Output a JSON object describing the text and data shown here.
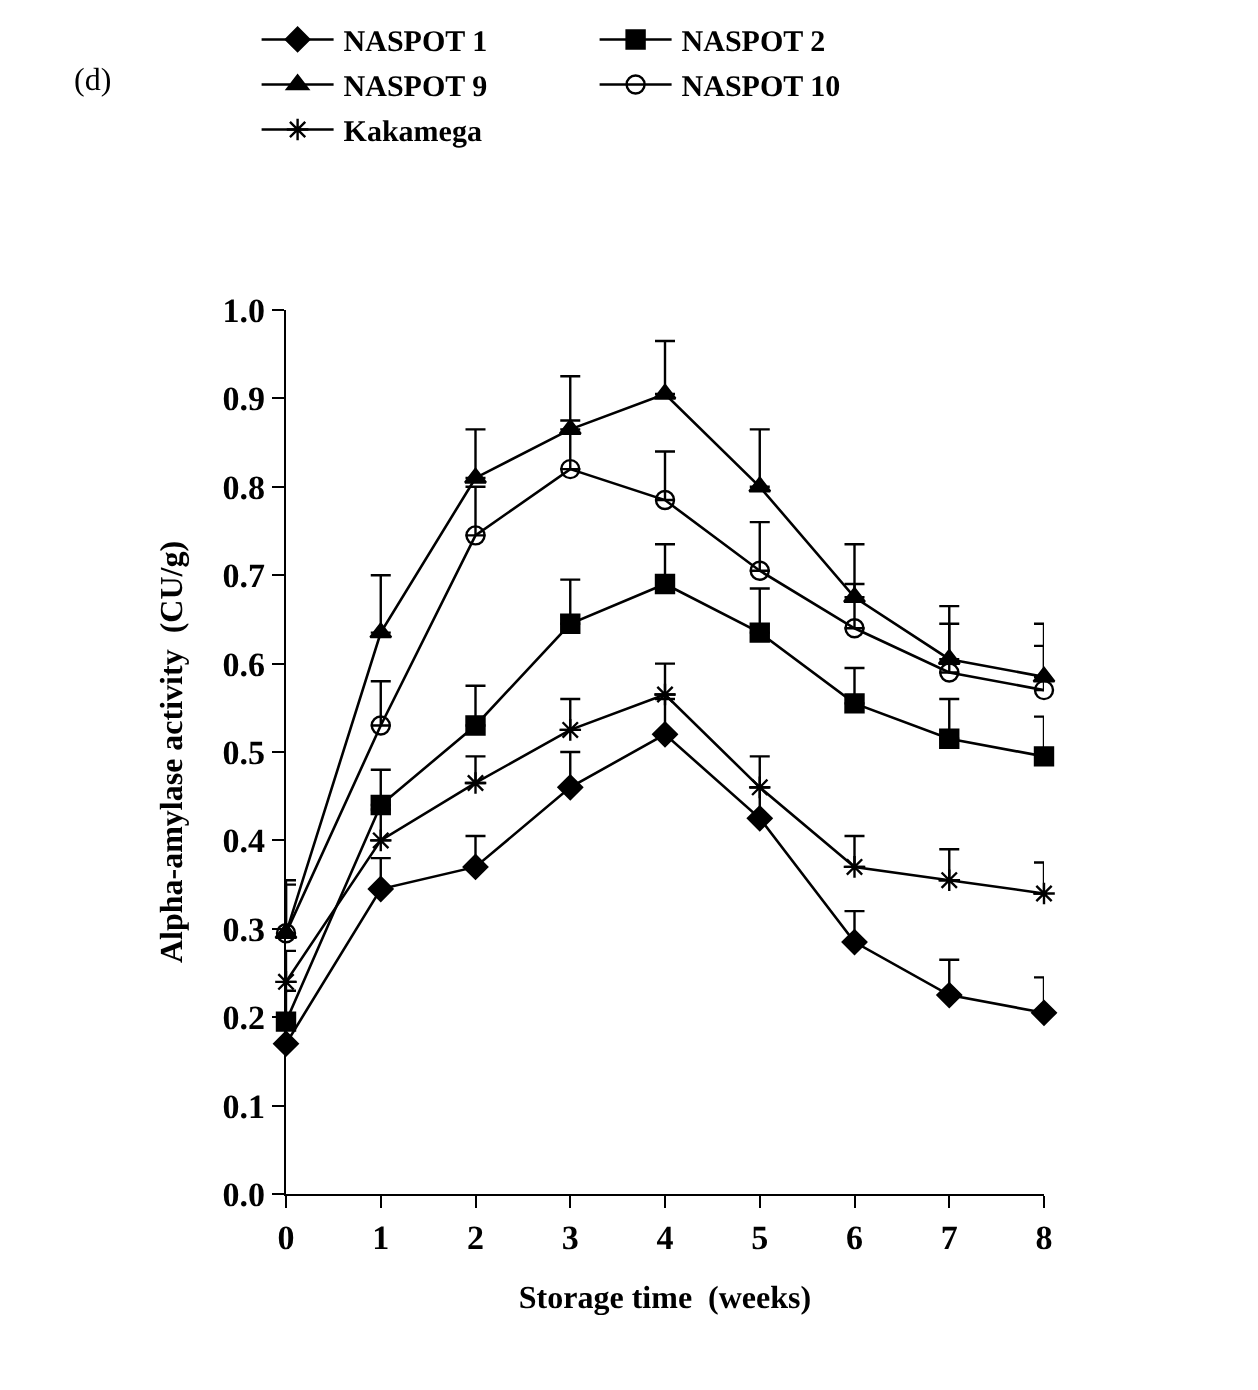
{
  "chart_data": {
    "type": "line",
    "xlabel": "Storage time  (weeks)",
    "ylabel": "Alpha-amylase activity  (CU/g)",
    "annotations": [
      "(d)"
    ],
    "x": [
      0,
      1,
      2,
      3,
      4,
      5,
      6,
      7,
      8
    ],
    "xlim": [
      0,
      8
    ],
    "xticks": [
      0,
      1,
      2,
      3,
      4,
      5,
      6,
      7,
      8
    ],
    "ylim": [
      0,
      1
    ],
    "yticks": [
      {
        "value": 0,
        "label": "0.0"
      },
      0.1,
      0.2,
      0.3,
      0.4,
      0.5,
      0.6,
      0.7,
      0.8,
      0.9,
      {
        "value": 1,
        "label": "1.0"
      }
    ],
    "legend": "top",
    "line_style": "solid",
    "series": [
      {
        "name": "NASPOT 1",
        "color": "#000000",
        "marker": "diamond",
        "values": [
          0.17,
          0.345,
          0.37,
          0.46,
          0.52,
          0.425,
          0.285,
          0.225,
          0.205
        ],
        "errors": [
          [
            0.17,
            0.2
          ],
          [
            0.345,
            0.38
          ],
          [
            0.37,
            0.405
          ],
          [
            0.46,
            0.5
          ],
          [
            0.52,
            0.56
          ],
          [
            0.425,
            0.46
          ],
          [
            0.285,
            0.32
          ],
          [
            0.225,
            0.265
          ],
          [
            0.205,
            0.245
          ]
        ]
      },
      {
        "name": "NASPOT 2",
        "color": "#000000",
        "marker": "square",
        "values": [
          0.195,
          0.44,
          0.53,
          0.645,
          0.69,
          0.635,
          0.555,
          0.515,
          0.495
        ],
        "errors": [
          [
            0.195,
            0.23
          ],
          [
            0.44,
            0.48
          ],
          [
            0.53,
            0.575
          ],
          [
            0.645,
            0.695
          ],
          [
            0.69,
            0.735
          ],
          [
            0.635,
            0.685
          ],
          [
            0.555,
            0.595
          ],
          [
            0.515,
            0.56
          ],
          [
            0.495,
            0.54
          ]
        ]
      },
      {
        "name": "NASPOT 9",
        "color": "#000000",
        "marker": "triangle",
        "values": [
          0.295,
          0.635,
          0.81,
          0.865,
          0.905,
          0.8,
          0.675,
          0.605,
          0.585
        ],
        "errors": [
          [
            0.295,
            0.355
          ],
          [
            0.635,
            0.7
          ],
          [
            0.81,
            0.865
          ],
          [
            0.865,
            0.925
          ],
          [
            0.905,
            0.965
          ],
          [
            0.8,
            0.865
          ],
          [
            0.675,
            0.735
          ],
          [
            0.605,
            0.665
          ],
          [
            0.585,
            0.645
          ]
        ]
      },
      {
        "name": "NASPOT 10",
        "color": "#000000",
        "marker": "circle",
        "values": [
          0.295,
          0.53,
          0.745,
          0.82,
          0.785,
          0.705,
          0.64,
          0.59,
          0.57
        ],
        "errors": [
          [
            0.295,
            0.35
          ],
          [
            0.53,
            0.58
          ],
          [
            0.745,
            0.8
          ],
          [
            0.82,
            0.875
          ],
          [
            0.785,
            0.84
          ],
          [
            0.705,
            0.76
          ],
          [
            0.64,
            0.69
          ],
          [
            0.59,
            0.645
          ],
          [
            0.57,
            0.62
          ]
        ]
      },
      {
        "name": "Kakamega",
        "color": "#000000",
        "marker": "cross",
        "values": [
          0.24,
          0.4,
          0.465,
          0.525,
          0.565,
          0.46,
          0.37,
          0.355,
          0.34
        ],
        "errors": [
          [
            0.24,
            0.275
          ],
          [
            0.4,
            0.435
          ],
          [
            0.465,
            0.495
          ],
          [
            0.525,
            0.56
          ],
          [
            0.565,
            0.6
          ],
          [
            0.46,
            0.495
          ],
          [
            0.37,
            0.405
          ],
          [
            0.355,
            0.39
          ],
          [
            0.34,
            0.375
          ]
        ]
      }
    ]
  }
}
